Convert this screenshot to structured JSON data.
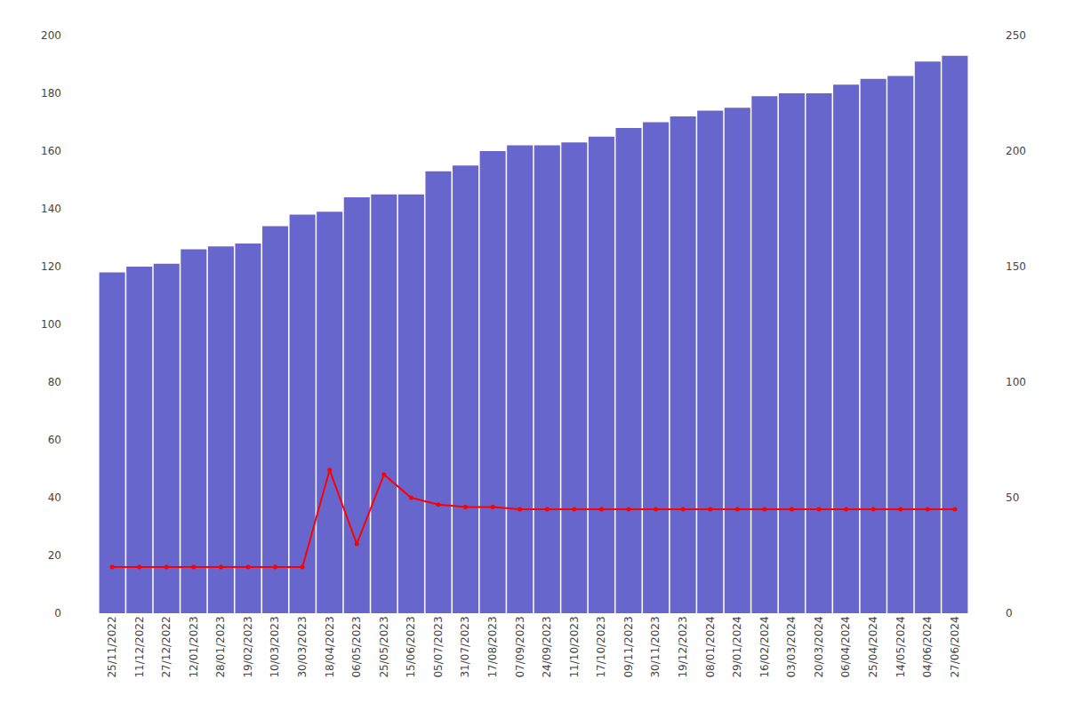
{
  "chart_data": {
    "type": "bar",
    "categories": [
      "25/11/2022",
      "11/12/2022",
      "27/12/2022",
      "12/01/2023",
      "28/01/2023",
      "19/02/2023",
      "10/03/2023",
      "30/03/2023",
      "18/04/2023",
      "06/05/2023",
      "25/05/2023",
      "15/06/2023",
      "05/07/2023",
      "31/07/2023",
      "17/08/2023",
      "07/09/2023",
      "24/09/2023",
      "11/10/2023",
      "17/10/2023",
      "09/11/2023",
      "30/11/2023",
      "19/12/2023",
      "08/01/2024",
      "29/01/2024",
      "16/02/2024",
      "03/03/2024",
      "20/03/2024",
      "06/04/2024",
      "25/04/2024",
      "14/05/2024",
      "04/06/2024",
      "27/06/2024"
    ],
    "series": [
      {
        "type": "bar",
        "color": "#6666cc",
        "values": [
          118,
          120,
          121,
          126,
          127,
          128,
          134,
          138,
          139,
          144,
          145,
          145,
          153,
          155,
          160,
          162,
          162,
          163,
          165,
          168,
          170,
          172,
          174,
          175,
          179,
          180,
          180,
          183,
          185,
          186,
          191,
          193
        ]
      },
      {
        "type": "line",
        "color": "#ff0000",
        "marker": "circle",
        "axis": "y2",
        "values": [
          20,
          20,
          20,
          20,
          20,
          20,
          20,
          20,
          62,
          30,
          60,
          50,
          47,
          46,
          46,
          45,
          45,
          45,
          45,
          45,
          45,
          45,
          45,
          45,
          45,
          45,
          45,
          45,
          45,
          45,
          45,
          45
        ]
      }
    ],
    "ylim": [
      0,
      200
    ],
    "yticks": [
      0,
      20,
      40,
      60,
      80,
      100,
      120,
      140,
      160,
      180,
      200
    ],
    "y2lim": [
      0,
      250
    ],
    "y2ticks": [
      0,
      50,
      100,
      150,
      200,
      250
    ],
    "grid": false
  }
}
